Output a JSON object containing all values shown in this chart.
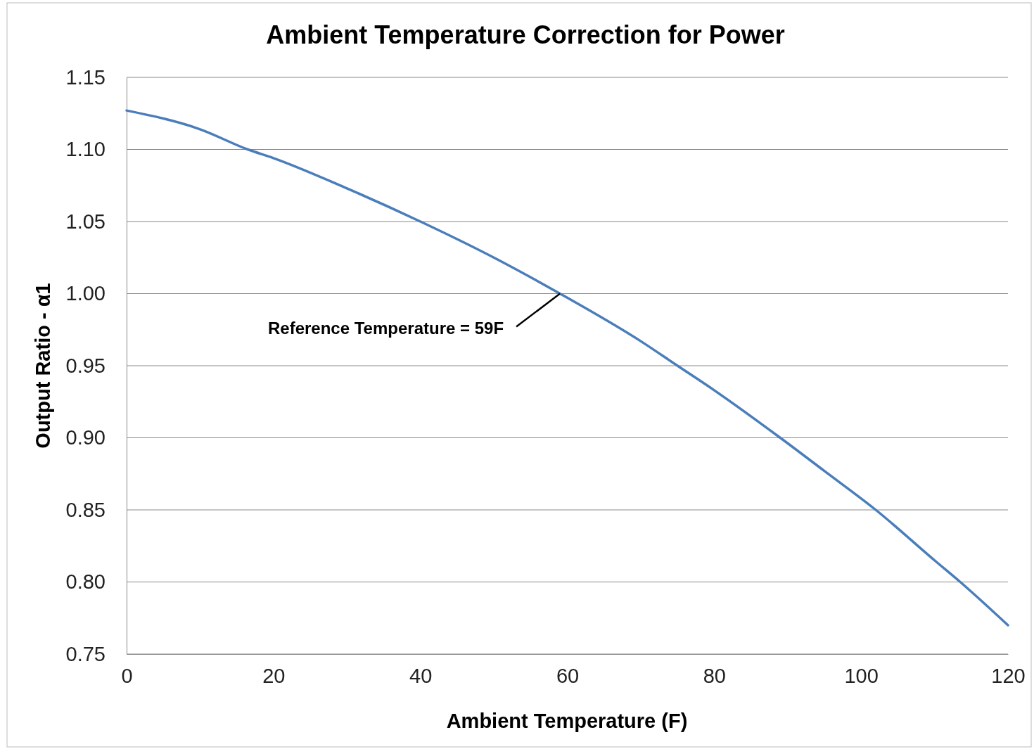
{
  "chart_data": {
    "type": "line",
    "title": "Ambient Temperature Correction for Power",
    "xlabel": "Ambient Temperature (F)",
    "ylabel": "Output Ratio - α1",
    "series": [
      {
        "color": "#4a7ebb",
        "x": [
          0,
          10,
          16.5,
          20,
          30,
          40,
          50,
          59,
          70,
          75,
          80,
          89,
          95,
          102,
          110,
          113.5,
          120
        ],
        "values": [
          1.127,
          1.114,
          1.1,
          1.094,
          1.073,
          1.05,
          1.025,
          1.0,
          0.967,
          0.95,
          0.933,
          0.9,
          0.877,
          0.85,
          0.815,
          0.8,
          0.77
        ]
      }
    ],
    "xlim": [
      0,
      120
    ],
    "xticks": [
      0,
      20,
      40,
      60,
      80,
      100,
      120
    ],
    "ylim": [
      0.75,
      1.15
    ],
    "yticks": [
      {
        "value": 0.75,
        "label": "0.75"
      },
      {
        "value": 0.8,
        "label": "0.80"
      },
      {
        "value": 0.85,
        "label": "0.85"
      },
      {
        "value": 0.9,
        "label": "0.90"
      },
      {
        "value": 0.95,
        "label": "0.95"
      },
      {
        "value": 1.0,
        "label": "1.00"
      },
      {
        "value": 1.05,
        "label": "1.05"
      },
      {
        "value": 1.1,
        "label": "1.10"
      },
      {
        "value": 1.15,
        "label": "1.15"
      }
    ],
    "grid": "y",
    "marker": "none",
    "line_style": "solid",
    "annotations": [
      {
        "text": "Reference Temperature = 59F",
        "x": 59,
        "y": 1.0
      }
    ]
  }
}
